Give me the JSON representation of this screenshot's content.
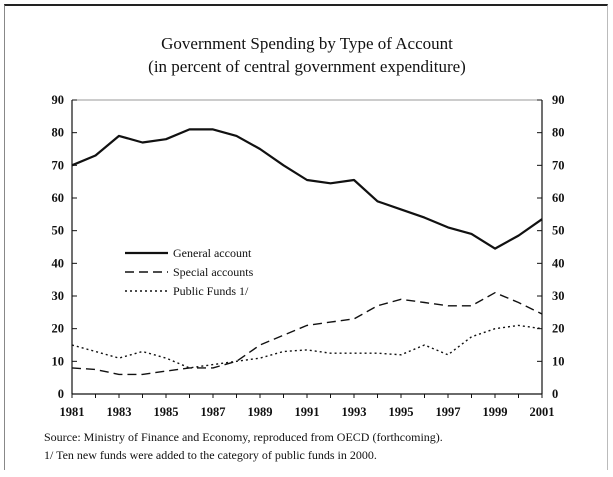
{
  "chart_data": {
    "type": "line",
    "title": "Government Spending by Type of Account",
    "subtitle": "(in percent of central government expenditure)",
    "xlabel": "",
    "ylabel": "",
    "x": [
      1981,
      1982,
      1983,
      1984,
      1985,
      1986,
      1987,
      1988,
      1989,
      1990,
      1991,
      1992,
      1993,
      1994,
      1995,
      1996,
      1997,
      1998,
      1999,
      2000,
      2001
    ],
    "x_tick_labels": [
      "1981",
      "1983",
      "1985",
      "1987",
      "1989",
      "1991",
      "1993",
      "1995",
      "1997",
      "1999",
      "2001"
    ],
    "y_tick_labels": [
      "0",
      "10",
      "20",
      "30",
      "40",
      "50",
      "60",
      "70",
      "80",
      "90"
    ],
    "ylim": [
      0,
      90
    ],
    "grid": false,
    "legend_position": "left-middle",
    "series": [
      {
        "name": "General account",
        "style": "solid",
        "values": [
          70,
          73,
          79,
          77,
          78,
          81,
          81,
          79,
          75,
          70,
          65.5,
          64.5,
          65.5,
          59,
          56.5,
          54,
          51,
          49,
          44.5,
          48.5,
          53.5
        ]
      },
      {
        "name": "Special accounts",
        "style": "dashed",
        "values": [
          8,
          7.5,
          6,
          6,
          7,
          8,
          8,
          10,
          15,
          18,
          21,
          22,
          23,
          27,
          29,
          28,
          27,
          27,
          31,
          28,
          24.5
        ]
      },
      {
        "name": "Public Funds 1/",
        "style": "dotted",
        "values": [
          15,
          13,
          11,
          13,
          11,
          8,
          9,
          10,
          11,
          13,
          13.5,
          12.5,
          12.5,
          12.5,
          12,
          15,
          12,
          17.5,
          20,
          21,
          20
        ]
      }
    ]
  },
  "footer": {
    "source": "Source: Ministry of Finance and Economy, reproduced from OECD (forthcoming).",
    "note": "1/  Ten new funds were added to the category of public funds in 2000."
  }
}
